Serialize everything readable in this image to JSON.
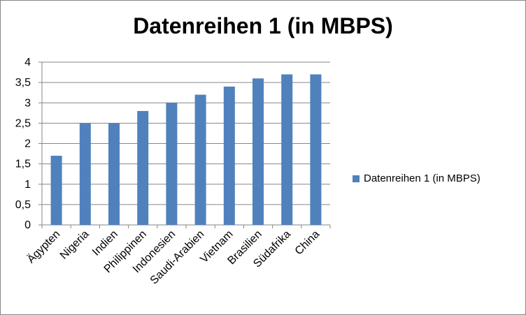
{
  "chart_data": {
    "type": "bar",
    "title": "Datenreihen 1 (in MBPS)",
    "categories": [
      "Ägypten",
      "Nigeria",
      "Indien",
      "Philippinen",
      "Indonesien",
      "Saudi-Arabien",
      "Vietnam",
      "Brasilien",
      "Südafrika",
      "China"
    ],
    "series": [
      {
        "name": "Datenreihen 1 (in MBPS)",
        "values": [
          1.7,
          2.5,
          2.5,
          2.8,
          3.0,
          3.2,
          3.4,
          3.6,
          3.7,
          3.7
        ]
      }
    ],
    "ylim": [
      0,
      4
    ],
    "yticks": [
      "0",
      "0,5",
      "1",
      "1,5",
      "2",
      "2,5",
      "3",
      "3,5",
      "4"
    ],
    "grid": true,
    "legend": "right",
    "colors": {
      "bar": "#4F81BD",
      "grid": "#868686",
      "axis": "#868686"
    }
  }
}
